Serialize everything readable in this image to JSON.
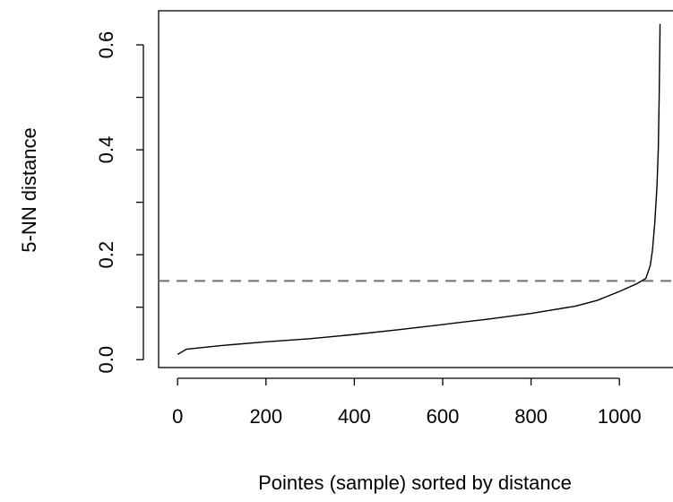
{
  "chart_data": {
    "type": "line",
    "ylabel": "5-NN distance",
    "xlabel": "Pointes (sample) sorted by distance",
    "x": [
      0,
      20,
      100,
      200,
      300,
      400,
      500,
      600,
      700,
      800,
      900,
      950,
      1000,
      1040,
      1060,
      1070,
      1075,
      1080,
      1085,
      1088,
      1090,
      1092
    ],
    "values": [
      0.01,
      0.02,
      0.027,
      0.034,
      0.04,
      0.048,
      0.057,
      0.067,
      0.077,
      0.088,
      0.102,
      0.113,
      0.13,
      0.145,
      0.155,
      0.18,
      0.21,
      0.26,
      0.33,
      0.4,
      0.5,
      0.64
    ],
    "color": "#000000",
    "xlim": [
      -43,
      1144
    ],
    "ylim": [
      -0.015,
      0.665
    ],
    "xticks": [
      0,
      200,
      400,
      600,
      800,
      1000
    ],
    "yticks": [
      {
        "value": 0,
        "label": "0.0"
      },
      {
        "value": 0.1,
        "label": null
      },
      {
        "value": 0.2,
        "label": "0.2"
      },
      {
        "value": 0.3,
        "label": null
      },
      {
        "value": 0.4,
        "label": "0.4"
      },
      {
        "value": 0.5,
        "label": null
      },
      {
        "value": 0.6,
        "label": "0.6"
      }
    ],
    "hline": 0.15,
    "hline_color": "#707070"
  }
}
